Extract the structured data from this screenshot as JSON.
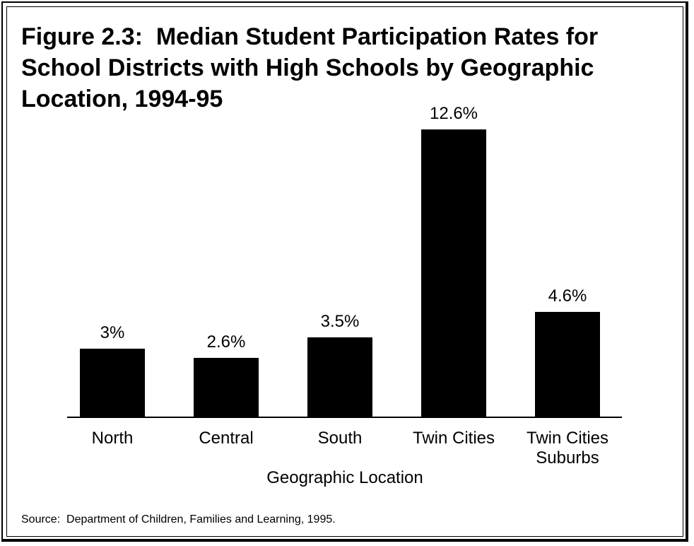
{
  "chart_data": {
    "type": "bar",
    "title": "Figure 2.3:  Median Student Participation Rates for School Districts with High Schools by Geographic Location, 1994-95",
    "categories": [
      "North",
      "Central",
      "South",
      "Twin Cities",
      "Twin Cities Suburbs"
    ],
    "values": [
      3,
      2.6,
      3.5,
      12.6,
      4.6
    ],
    "value_labels": [
      "3%",
      "2.6%",
      "3.5%",
      "12.6%",
      "4.6%"
    ],
    "color": "#000000",
    "xlabel": "Geographic Location",
    "source": "Source:  Department of Children, Families and Learning, 1995."
  }
}
